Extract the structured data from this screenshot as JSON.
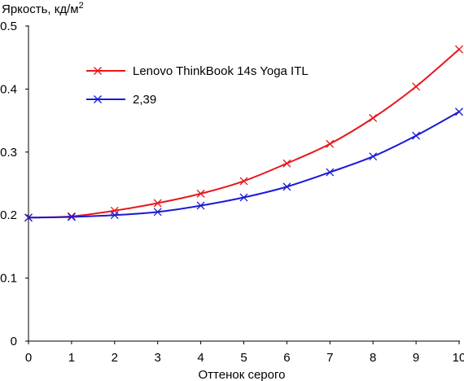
{
  "chart_data": {
    "type": "line",
    "ylabel": "Яркость, кд/м",
    "ylabel_sup": "2",
    "xlabel": "Оттенок серого",
    "xlim": [
      0,
      10
    ],
    "ylim": [
      0,
      0.5
    ],
    "x_ticks": [
      "0",
      "1",
      "2",
      "3",
      "4",
      "5",
      "6",
      "7",
      "8",
      "9",
      "10"
    ],
    "y_ticks": [
      "0",
      "0.1",
      "0.2",
      "0.3",
      "0.4",
      "0.5"
    ],
    "x": [
      0,
      1,
      2,
      3,
      4,
      5,
      6,
      7,
      8,
      9,
      10
    ],
    "grid": false,
    "legend_position": "top-left",
    "series": [
      {
        "name": "Lenovo ThinkBook 14s Yoga ITL",
        "color": "#e8161c",
        "values": [
          0.196,
          0.198,
          0.207,
          0.219,
          0.234,
          0.254,
          0.282,
          0.313,
          0.354,
          0.404,
          0.463
        ]
      },
      {
        "name": "2,39",
        "color": "#1a1ad6",
        "values": [
          0.196,
          0.197,
          0.2,
          0.205,
          0.215,
          0.228,
          0.245,
          0.268,
          0.293,
          0.326,
          0.364
        ]
      }
    ]
  }
}
